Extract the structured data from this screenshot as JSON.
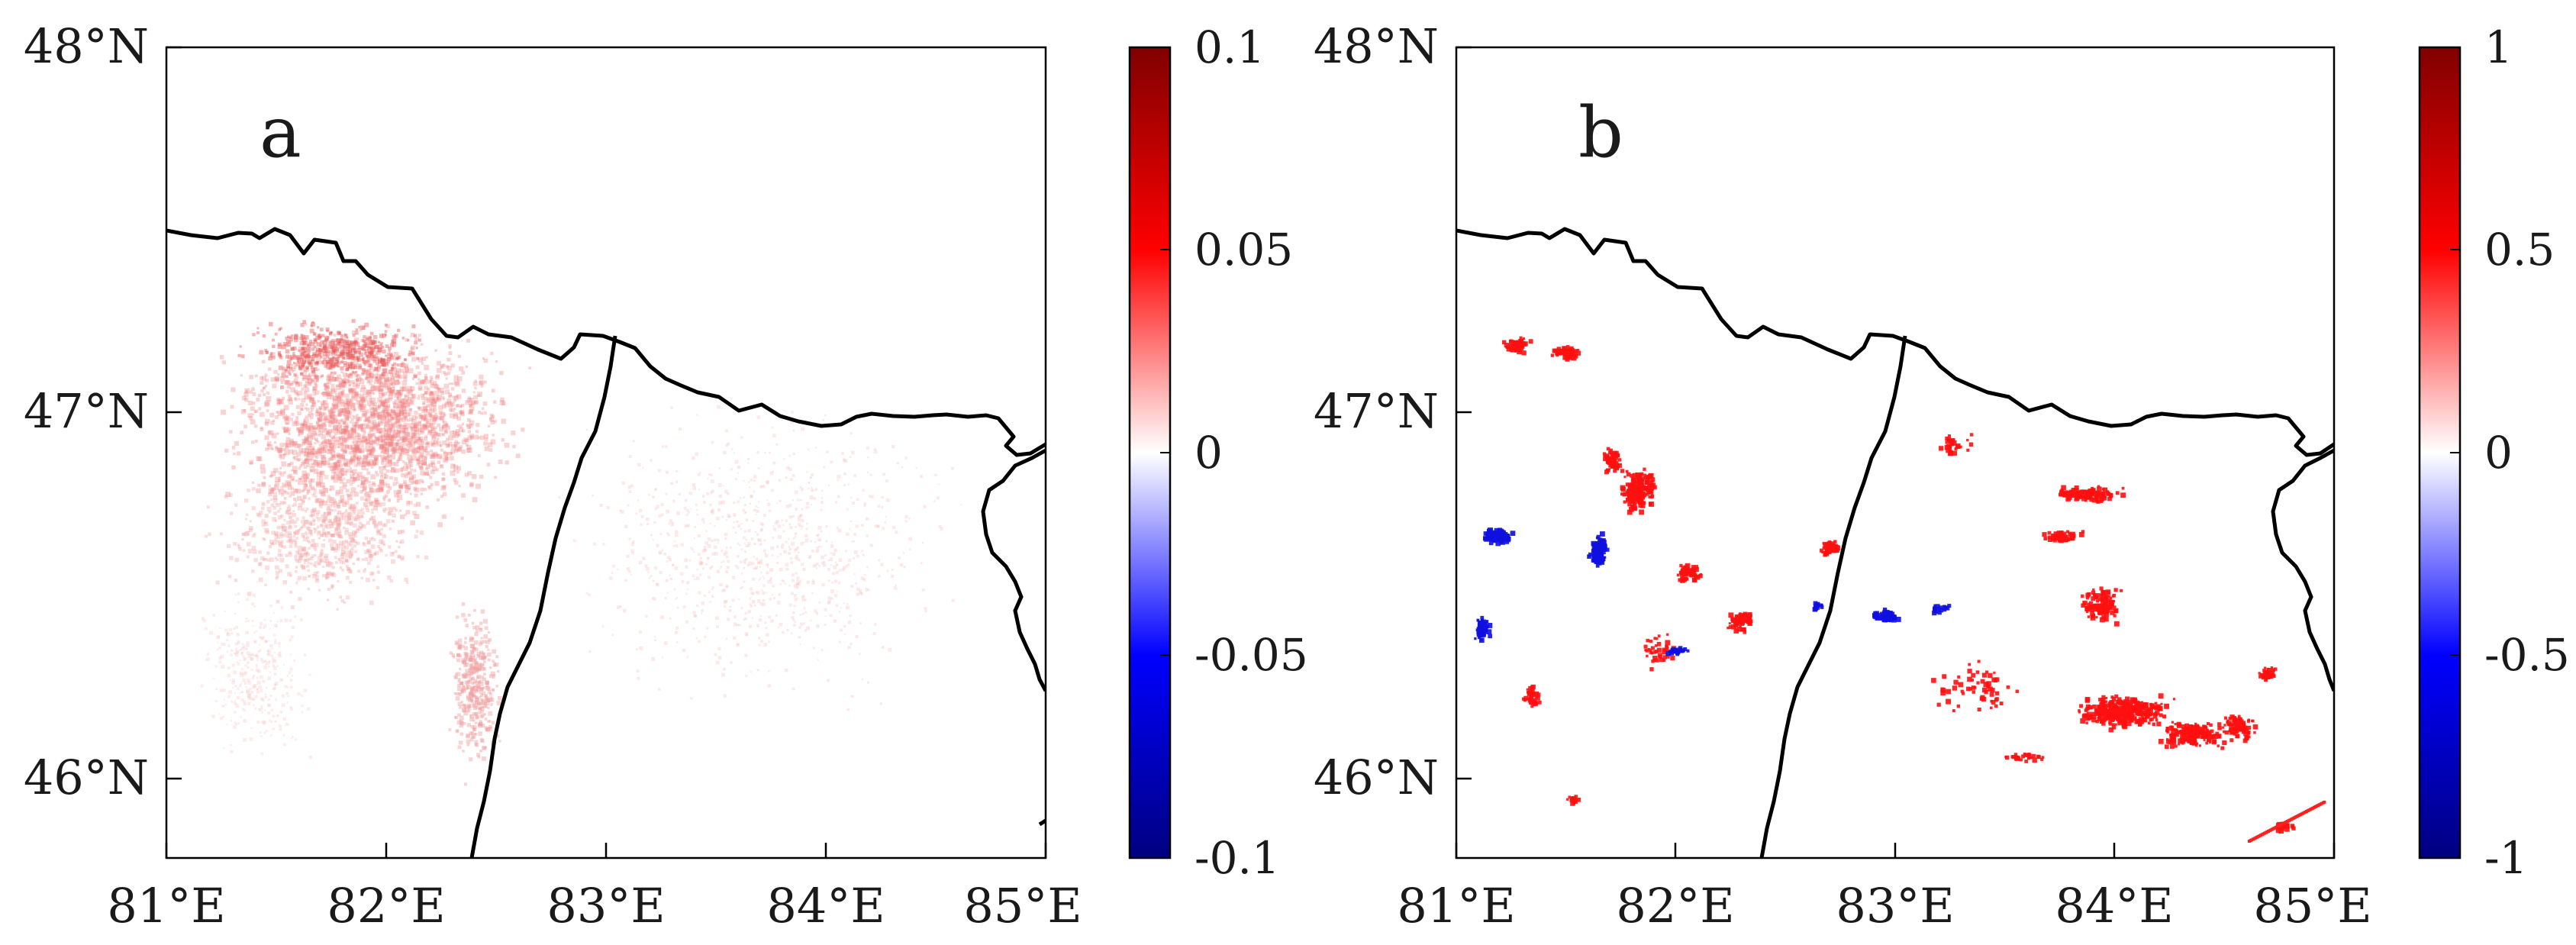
{
  "panels": [
    {
      "label": "a",
      "lat_ticks": [
        "48°N",
        "47°N",
        "46°N"
      ],
      "lon_ticks": [
        "81°E",
        "82°E",
        "83°E",
        "84°E",
        "85°E"
      ],
      "colorbar": {
        "min": -0.1,
        "max": 0.1,
        "ticks": [
          "0.1",
          "0.05",
          "0",
          "-0.05",
          "-0.1"
        ],
        "colors": [
          "#800000",
          "#ff0000",
          "#ffffff",
          "#0000ff",
          "#000080"
        ]
      },
      "pattern": "dense-light-red-west-with-faint-red-east"
    },
    {
      "label": "b",
      "lat_ticks": [
        "48°N",
        "47°N",
        "46°N"
      ],
      "lon_ticks": [
        "81°E",
        "82°E",
        "83°E",
        "84°E",
        "85°E"
      ],
      "colorbar": {
        "min": -1,
        "max": 1,
        "ticks": [
          "1",
          "0.5",
          "0",
          "-0.5",
          "-1"
        ],
        "colors": [
          "#800000",
          "#ff0000",
          "#ffffff",
          "#0000ff",
          "#000080"
        ]
      },
      "pattern": "scattered-red-and-blue-clusters"
    }
  ],
  "border_color": "#000000"
}
